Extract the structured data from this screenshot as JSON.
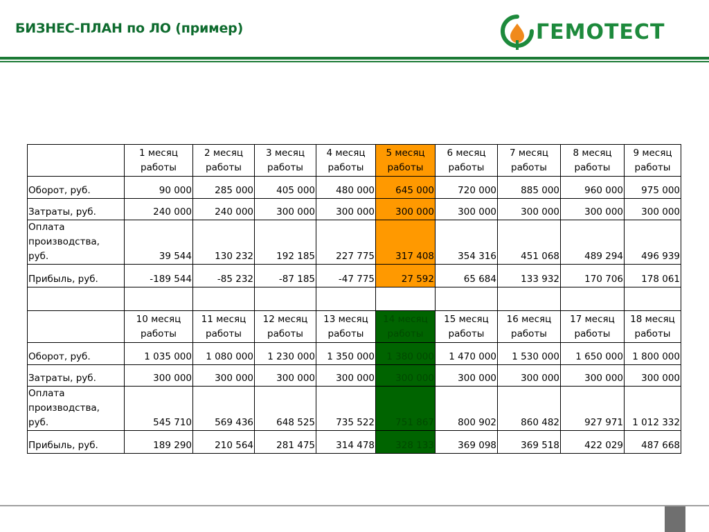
{
  "header": {
    "title": "БИЗНЕС-ПЛАН по ЛО (пример)",
    "logo_text": "ГЕМОТЕСТ",
    "brand_color": "#1d8a3c"
  },
  "table": {
    "highlight_colors": {
      "block1": "#ff9900",
      "block2": "#006400"
    },
    "blocks": [
      {
        "headers": [
          [
            "1 месяц",
            "работы"
          ],
          [
            "2 месяц",
            "работы"
          ],
          [
            "3 месяц",
            "работы"
          ],
          [
            "4 месяц",
            "работы"
          ],
          [
            "5 месяц",
            "работы"
          ],
          [
            "6 месяц",
            "работы"
          ],
          [
            "7 месяц",
            "работы"
          ],
          [
            "8 месяц",
            "работы"
          ],
          [
            "9 месяц",
            "работы"
          ]
        ],
        "rows": [
          {
            "label": [
              "Оборот, руб."
            ],
            "values": [
              "90 000",
              "285 000",
              "405 000",
              "480 000",
              "645 000",
              "720 000",
              "885 000",
              "960 000",
              "975 000"
            ]
          },
          {
            "label": [
              "Затраты, руб."
            ],
            "values": [
              "240 000",
              "240 000",
              "300 000",
              "300 000",
              "300 000",
              "300 000",
              "300 000",
              "300 000",
              "300 000"
            ]
          },
          {
            "label": [
              "Оплата",
              "производства,",
              "руб."
            ],
            "values": [
              "39 544",
              "130 232",
              "192 185",
              "227 775",
              "317 408",
              "354 316",
              "451 068",
              "489 294",
              "496 939"
            ]
          },
          {
            "label": [
              "Прибыль, руб."
            ],
            "values": [
              "-189 544",
              "-85 232",
              "-87 185",
              "-47 775",
              "27 592",
              "65 684",
              "133 932",
              "170 706",
              "178 061"
            ]
          }
        ]
      },
      {
        "headers": [
          [
            "10 месяц",
            "работы"
          ],
          [
            "11 месяц",
            "работы"
          ],
          [
            "12 месяц",
            "работы"
          ],
          [
            "13 месяц",
            "работы"
          ],
          [
            "14 месяц",
            "работы"
          ],
          [
            "15 месяц",
            "работы"
          ],
          [
            "16 месяц",
            "работы"
          ],
          [
            "17 месяц",
            "работы"
          ],
          [
            "18 месяц",
            "работы"
          ]
        ],
        "rows": [
          {
            "label": [
              "Оборот, руб."
            ],
            "values": [
              "1 035 000",
              "1 080 000",
              "1 230 000",
              "1 350 000",
              "1 380 000",
              "1 470 000",
              "1 530 000",
              "1 650 000",
              "1 800 000"
            ]
          },
          {
            "label": [
              "Затраты, руб."
            ],
            "values": [
              "300 000",
              "300 000",
              "300 000",
              "300 000",
              "300 000",
              "300 000",
              "300 000",
              "300 000",
              "300 000"
            ]
          },
          {
            "label": [
              "Оплата",
              "производства,",
              "руб."
            ],
            "values": [
              "545 710",
              "569 436",
              "648 525",
              "735 522",
              "751 867",
              "800 902",
              "860 482",
              "927 971",
              "1 012 332"
            ]
          },
          {
            "label": [
              "Прибыль, руб."
            ],
            "values": [
              "189 290",
              "210 564",
              "281 475",
              "314 478",
              "328 133",
              "369 098",
              "369 518",
              "422 029",
              "487 668"
            ]
          }
        ]
      }
    ]
  }
}
